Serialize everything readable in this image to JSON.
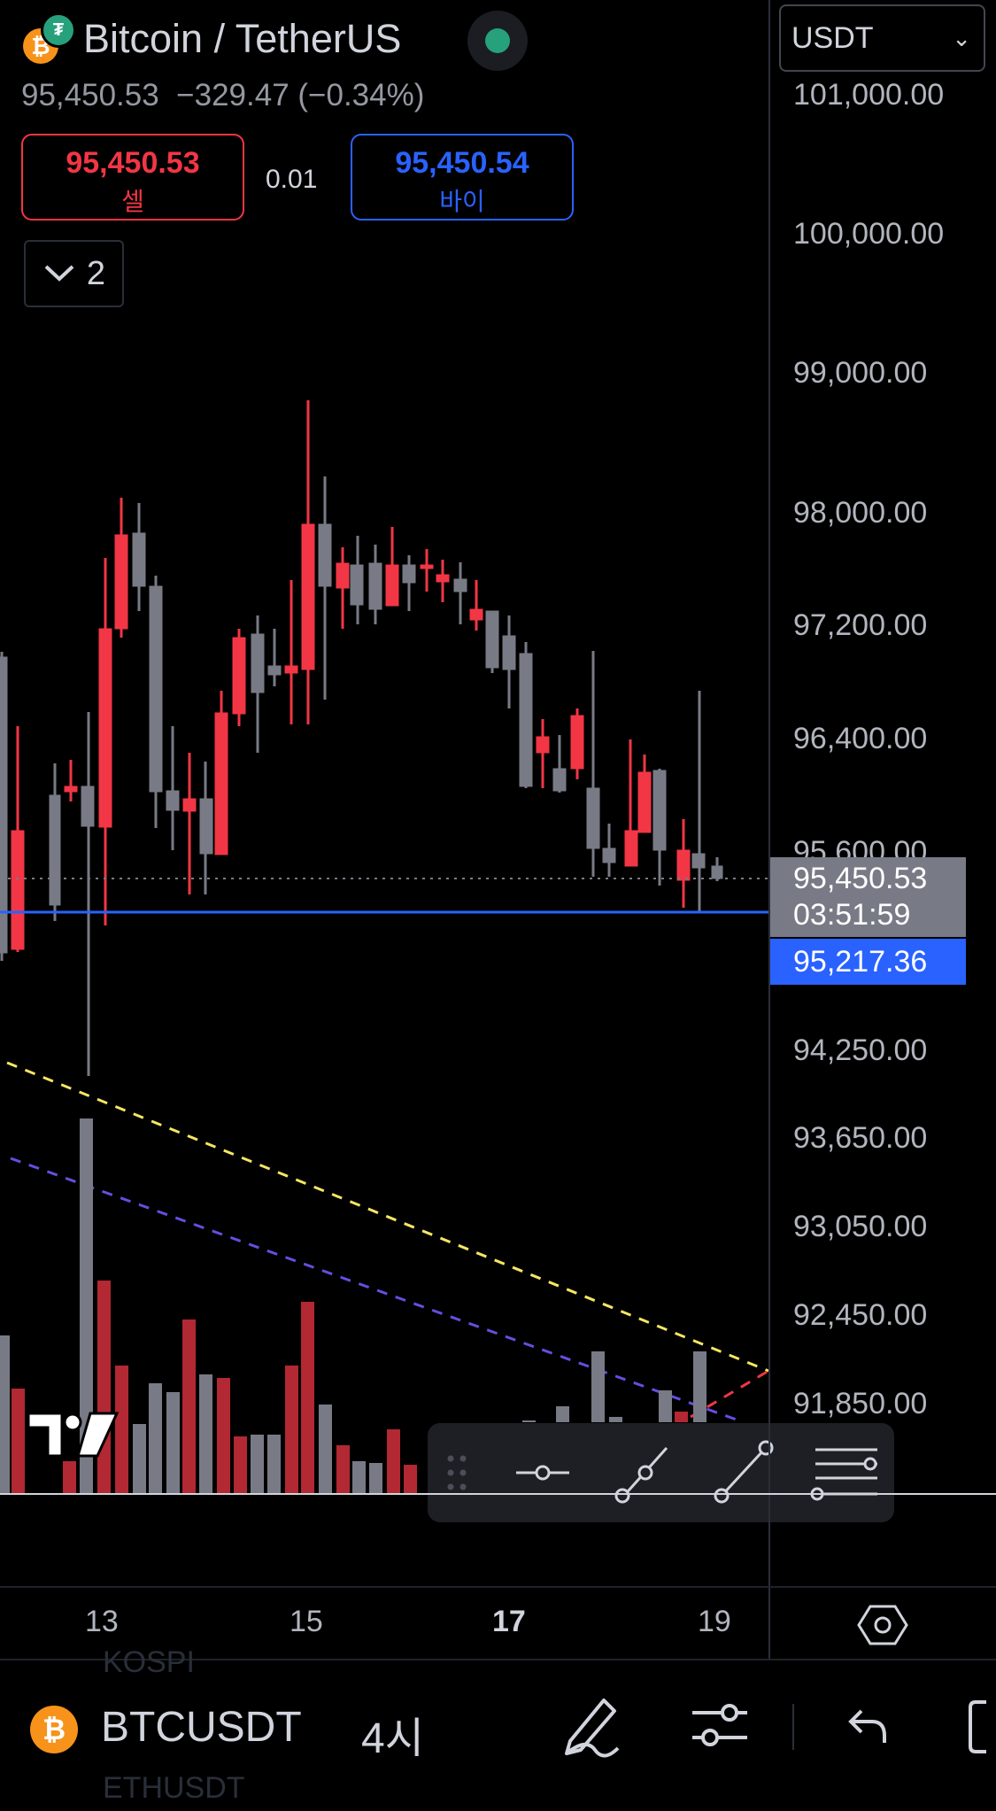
{
  "header": {
    "title": "Bitcoin / TetherUS",
    "price": "95,450.53",
    "change": "−329.47 (−0.34%)",
    "currency": "USDT"
  },
  "trade": {
    "sell_price": "95,450.53",
    "sell_label": "셀",
    "spread": "0.01",
    "buy_price": "95,450.54",
    "buy_label": "바이"
  },
  "indicators_toggle": {
    "count": "2"
  },
  "price_axis": {
    "ticks": [
      "101,000.00",
      "100,000.00",
      "99,000.00",
      "98,000.00",
      "97,200.00",
      "96,400.00",
      "95,600.00",
      "94,250.00",
      "93,650.00",
      "93,050.00",
      "92,450.00",
      "91,850.00"
    ],
    "last_price": "95,450.53",
    "countdown": "03:51:59",
    "line_price": "95,217.36"
  },
  "time_axis": {
    "labels": [
      "13",
      "15",
      "17",
      "19"
    ],
    "bold_label": "17"
  },
  "bottom_bar": {
    "symbol": "BTCUSDT",
    "interval": "4시",
    "ghost_above": "KOSPI",
    "ghost_below": "ETHUSDT"
  },
  "colors": {
    "up": "#f23645",
    "down": "#787b86",
    "accent": "#2962ff",
    "background": "#000000"
  },
  "icons": [
    "bitcoin-icon",
    "tether-icon",
    "live-status-icon",
    "chevron-down-icon",
    "settings-hex-icon",
    "pencil-icon",
    "sliders-icon",
    "undo-icon",
    "drag-handle-icon",
    "horizontal-line-icon",
    "ray-icon",
    "trend-line-icon",
    "fib-lines-icon"
  ]
}
